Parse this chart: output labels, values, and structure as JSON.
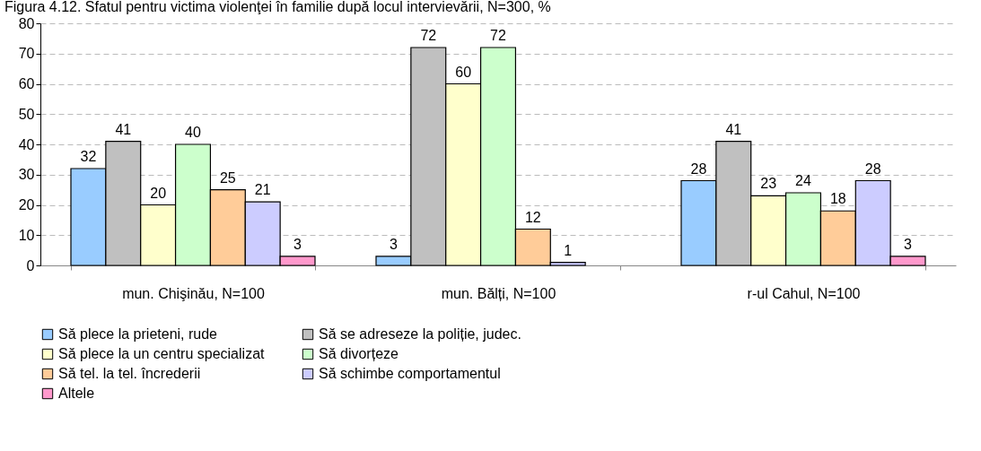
{
  "chart_data": {
    "type": "bar",
    "title": "Figura 4.12. Sfatul pentru victima violenţei în familie după locul intervievării, N=300, %",
    "categories": [
      "mun. Chişinău, N=100",
      "mun. Bălți, N=100",
      "r-ul Cahul, N=100"
    ],
    "series": [
      {
        "name": "Să plece la prieteni, rude",
        "color": "#99ccff",
        "values": [
          32,
          3,
          28
        ]
      },
      {
        "name": "Să se adreseze la poliție, judec.",
        "color": "#c0c0c0",
        "values": [
          41,
          72,
          41
        ]
      },
      {
        "name": "Să plece la un centru specializat",
        "color": "#ffffcc",
        "values": [
          20,
          60,
          23
        ]
      },
      {
        "name": "Să divorțeze",
        "color": "#ccffcc",
        "values": [
          40,
          72,
          24
        ]
      },
      {
        "name": "Să tel. la tel. încrederii",
        "color": "#ffcc99",
        "values": [
          25,
          12,
          18
        ]
      },
      {
        "name": "Să schimbe comportamentul",
        "color": "#ccccff",
        "values": [
          21,
          1,
          28
        ]
      },
      {
        "name": "Altele",
        "color": "#ff99cc",
        "values": [
          3,
          null,
          3
        ]
      }
    ],
    "ylim": [
      0,
      80
    ],
    "yticks": [
      0,
      10,
      20,
      30,
      40,
      50,
      60,
      70,
      80
    ],
    "grid": "y",
    "legend": "bottom",
    "data_labels": true
  }
}
